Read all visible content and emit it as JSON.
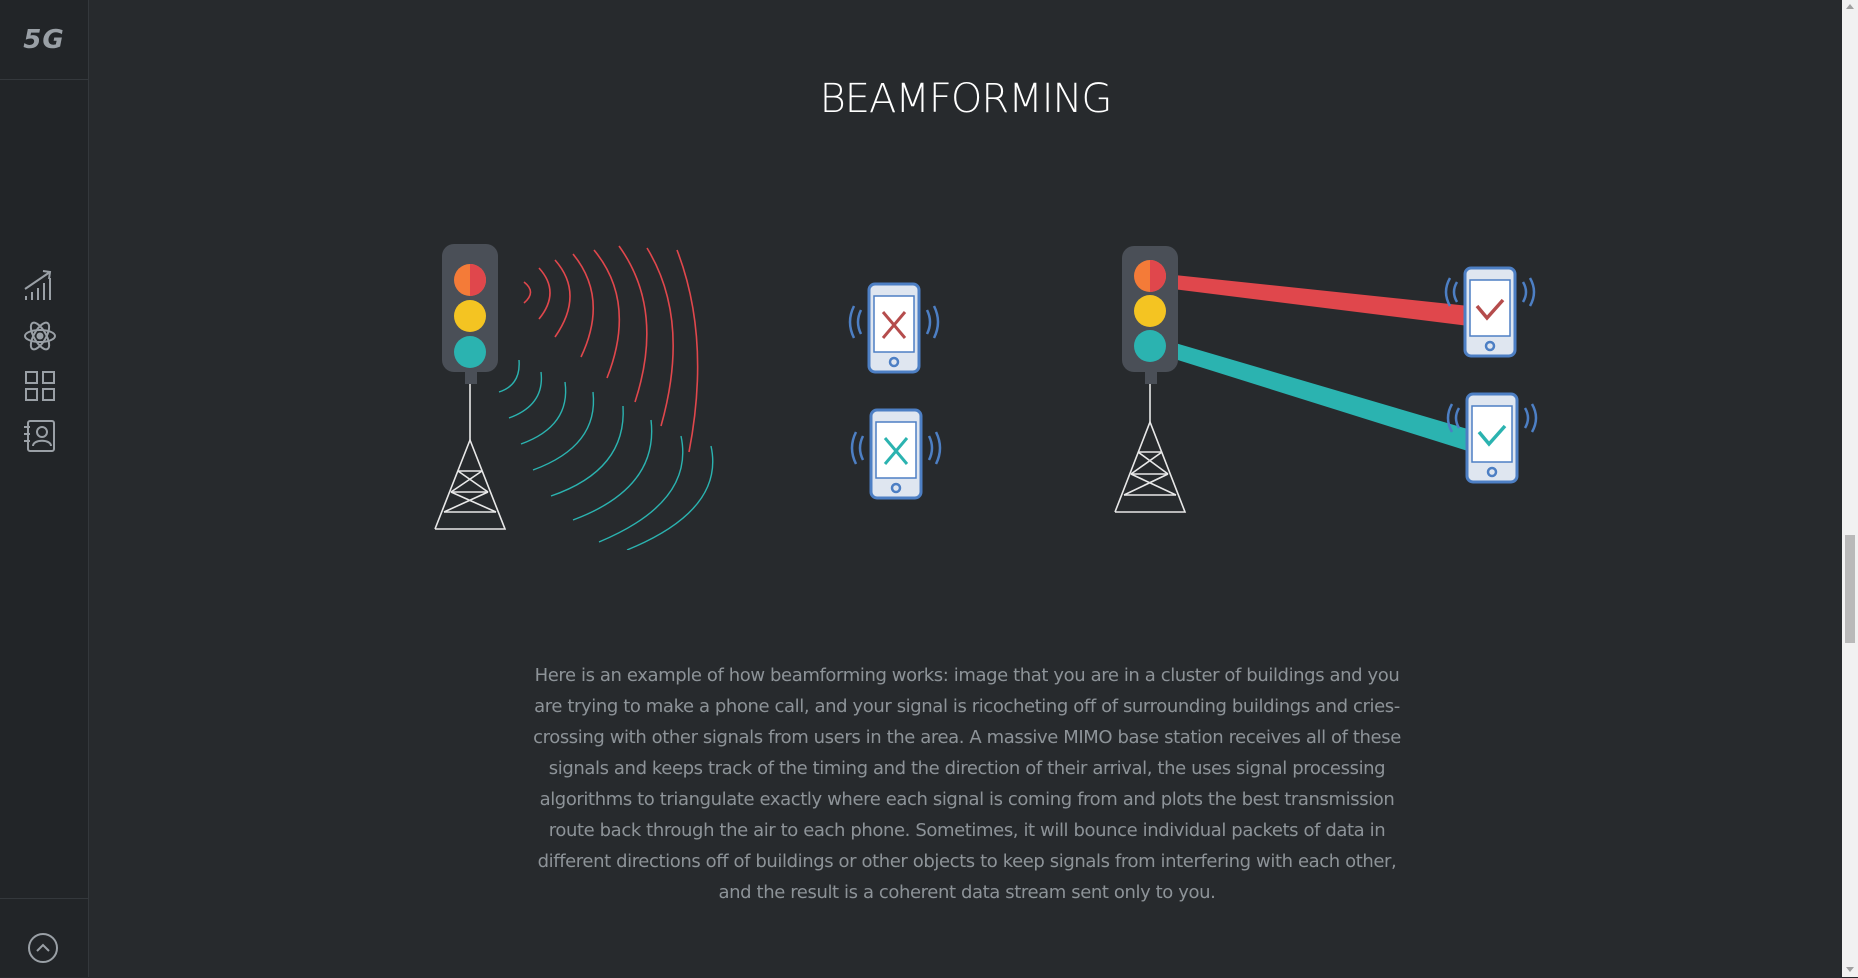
{
  "sidebar": {
    "logo": "5G",
    "nav": [
      {
        "icon": "chart-growth-icon"
      },
      {
        "icon": "atom-icon"
      },
      {
        "icon": "grid-icon"
      },
      {
        "icon": "contact-card-icon"
      }
    ],
    "back_to_top_icon": "chevron-up-circle-icon"
  },
  "main": {
    "title": "BEAMFORMING",
    "description": "Here is an example of how beamforming works: image that you are in a cluster of buildings and you are trying to make a phone call, and your signal is ricocheting off of surrounding buildings and cries-crossing with other signals from users in the area. A massive MIMO base station receives all of these signals and keeps track of the timing and the direction of their arrival, the uses signal processing algorithms to triangulate exactly where each signal is coming from and plots the best transmission route back through the air to each phone. Sometimes, it will bounce individual packets of data in different directions off of buildings or other objects to keep signals from interfering with each other, and the result is a coherent data stream sent only to you."
  },
  "colors": {
    "background": "#272a2d",
    "sidebar": "#222528",
    "red": "#e0474c",
    "orange": "#f47b38",
    "yellow": "#f4c422",
    "teal": "#2bb3b0",
    "phone_blue": "#4d7fc4"
  }
}
